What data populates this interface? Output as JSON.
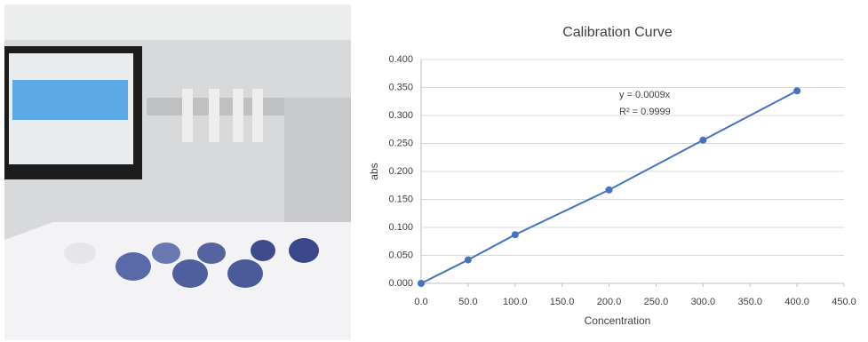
{
  "chart_data": {
    "type": "line",
    "title": "Calibration Curve",
    "x_label": "Concentration",
    "y_label": "abs",
    "x": [
      0,
      50,
      100,
      200,
      300,
      400
    ],
    "series": [
      {
        "color": "#4472c4",
        "values": [
          0,
          0.042,
          0.087,
          0.167,
          0.256,
          0.344
        ]
      }
    ],
    "annotations": [
      "y = 0.0009x",
      "R² = 0.9999"
    ],
    "xlim": [
      0,
      450
    ],
    "xticks": [
      {
        "value": 0,
        "label": "0.0"
      },
      {
        "value": 50,
        "label": "50.0"
      },
      {
        "value": 100,
        "label": "100.0"
      },
      {
        "value": 150,
        "label": "150.0"
      },
      {
        "value": 200,
        "label": "200.0"
      },
      {
        "value": 250,
        "label": "250.0"
      },
      {
        "value": 300,
        "label": "300.0"
      },
      {
        "value": 350,
        "label": "350.0"
      },
      {
        "value": 400,
        "label": "400.0"
      },
      {
        "value": 450,
        "label": "450.0"
      }
    ],
    "ylim": [
      0,
      0.4
    ],
    "yticks": [
      {
        "value": 0,
        "label": "0.000"
      },
      {
        "value": 0.05,
        "label": "0.050"
      },
      {
        "value": 0.1,
        "label": "0.100"
      },
      {
        "value": 0.15,
        "label": "0.150"
      },
      {
        "value": 0.2,
        "label": "0.200"
      },
      {
        "value": 0.25,
        "label": "0.250"
      },
      {
        "value": 0.3,
        "label": "0.300"
      },
      {
        "value": 0.35,
        "label": "0.350"
      },
      {
        "value": 0.4,
        "label": "0.400"
      }
    ],
    "grid": true
  }
}
